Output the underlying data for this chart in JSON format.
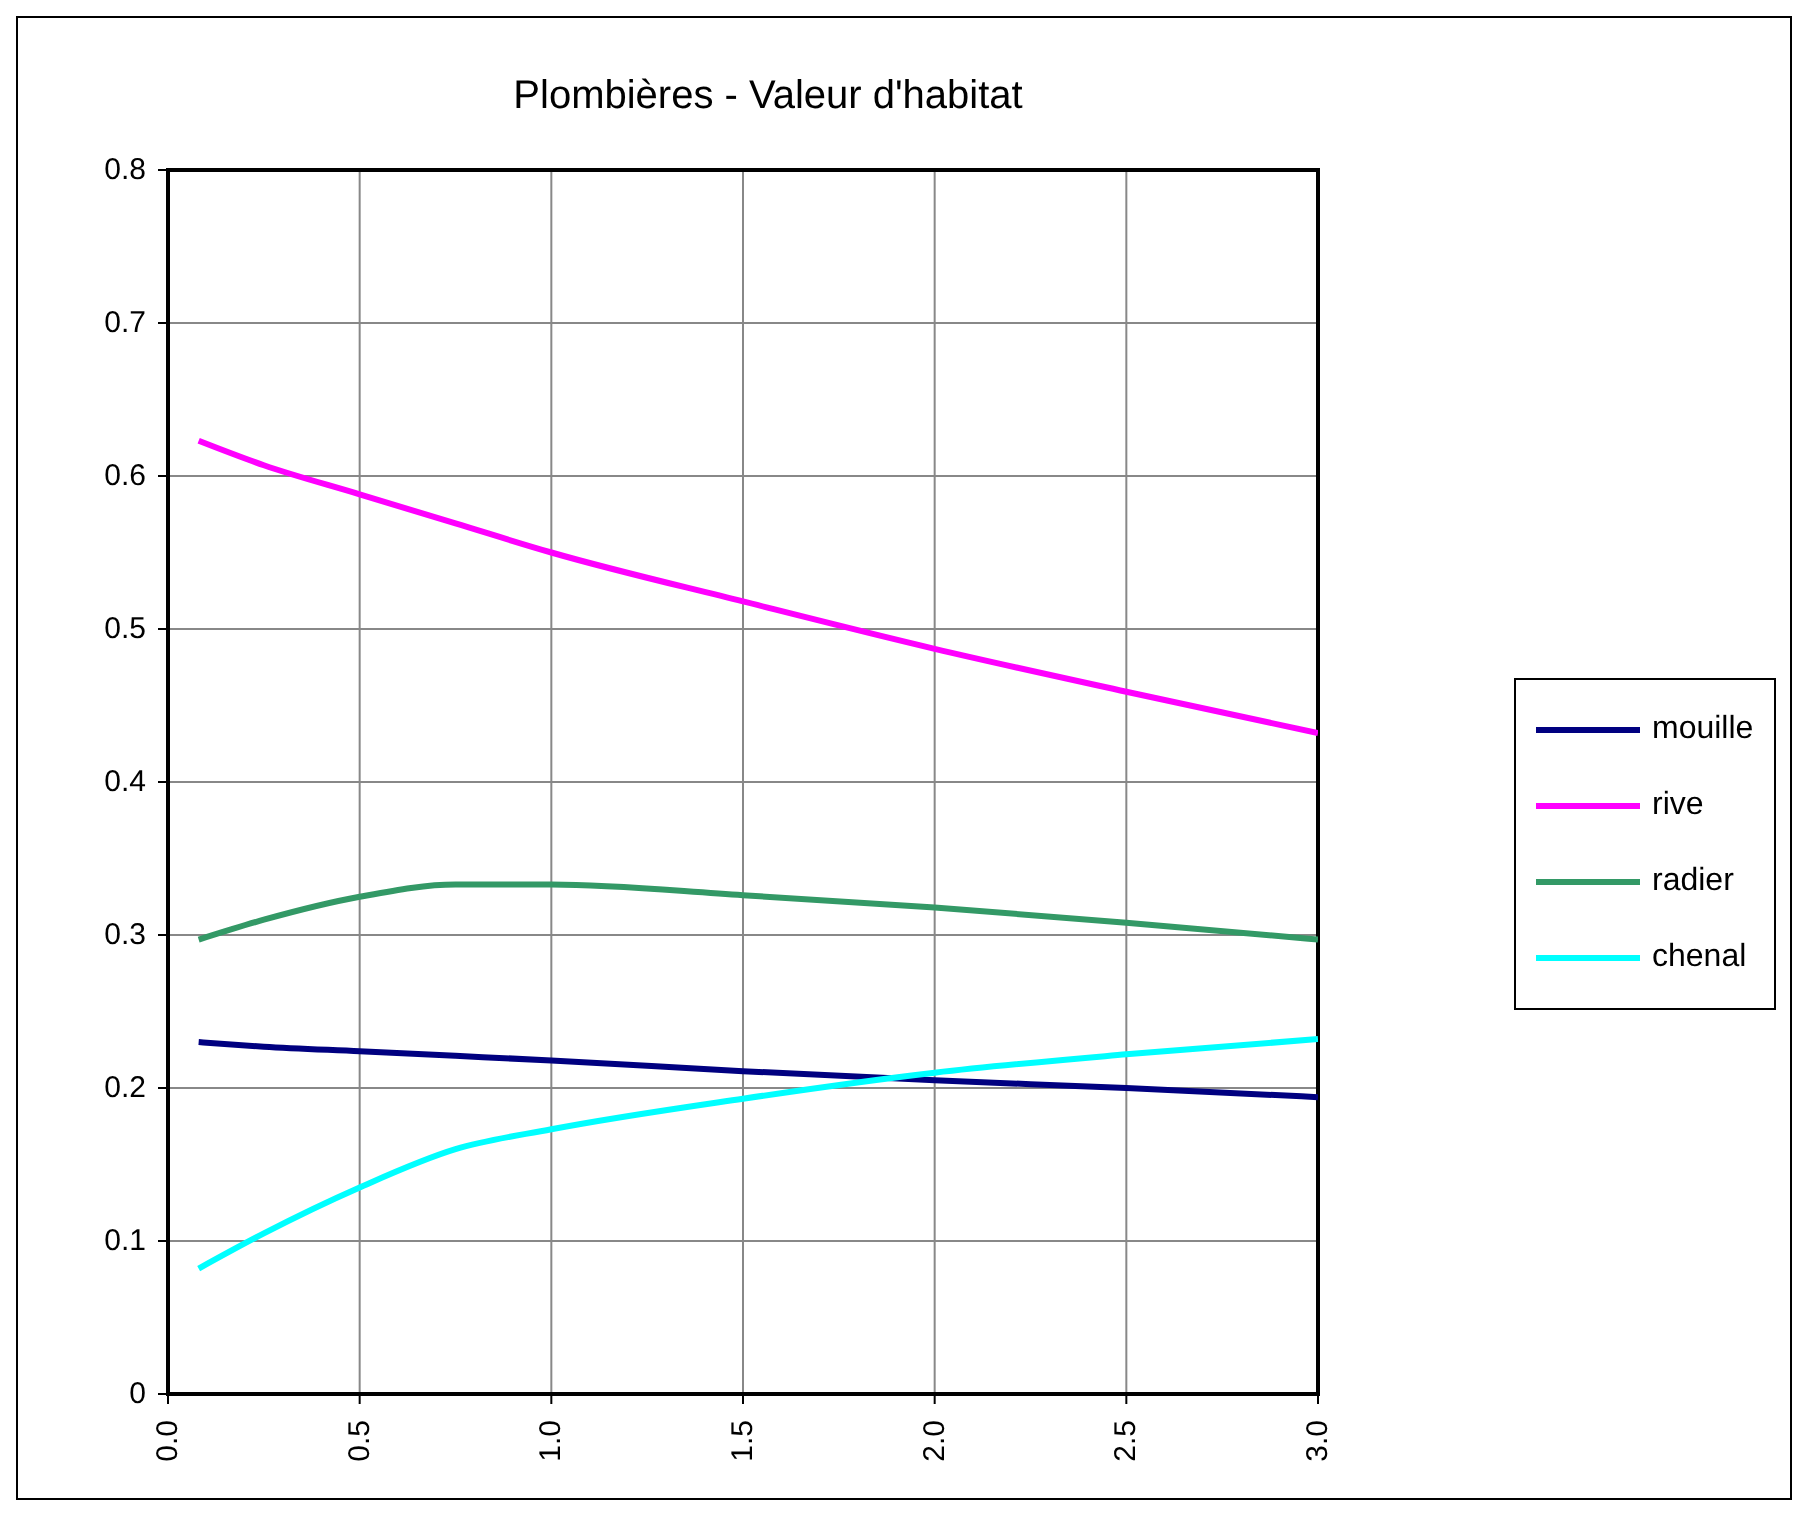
{
  "chart_data": {
    "type": "line",
    "title": "Plombières - Valeur d'habitat",
    "xlim": [
      0,
      3
    ],
    "xticks": [
      {
        "value": 0,
        "label": "0.0"
      },
      {
        "value": 0.5,
        "label": "0.5"
      },
      {
        "value": 1,
        "label": "1.0"
      },
      {
        "value": 1.5,
        "label": "1.5"
      },
      {
        "value": 2,
        "label": "2.0"
      },
      {
        "value": 2.5,
        "label": "2.5"
      },
      {
        "value": 3,
        "label": "3.0"
      }
    ],
    "ylim": [
      0,
      0.8
    ],
    "yticks": [
      0,
      0.1,
      0.2,
      0.3,
      0.4,
      0.5,
      0.6,
      0.7,
      0.8
    ],
    "grid": true,
    "legend": "right",
    "marker": "none",
    "line_style": "solid",
    "x": [
      0.08,
      0.25,
      0.5,
      0.75,
      1,
      1.5,
      2,
      2.5,
      3
    ],
    "series": [
      {
        "name": "mouille",
        "color": "#000080",
        "values": [
          0.23,
          0.227,
          0.224,
          0.221,
          0.218,
          0.211,
          0.205,
          0.2,
          0.194
        ]
      },
      {
        "name": "rive",
        "color": "#ff00ff",
        "values": [
          0.623,
          0.607,
          0.588,
          0.569,
          0.55,
          0.518,
          0.487,
          0.459,
          0.432
        ]
      },
      {
        "name": "radier",
        "color": "#339966",
        "values": [
          0.297,
          0.31,
          0.325,
          0.333,
          0.333,
          0.326,
          0.318,
          0.308,
          0.297
        ]
      },
      {
        "name": "chenal",
        "color": "#00ffff",
        "values": [
          0.082,
          0.105,
          0.135,
          0.16,
          0.173,
          0.193,
          0.21,
          0.222,
          0.232
        ]
      }
    ]
  }
}
